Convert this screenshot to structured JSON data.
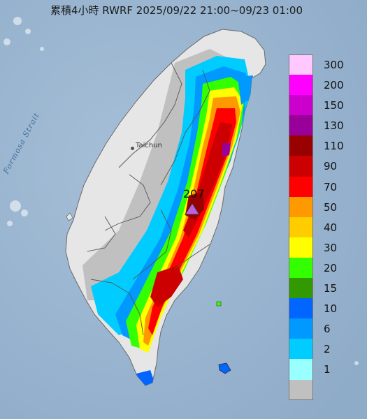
{
  "title": "累積4小時 RWRF 2025/09/22 21:00~09/23 01:00",
  "labels": {
    "strait": "Formosa Strait",
    "city": "Taichun"
  },
  "peak": {
    "value": "207",
    "marker_color": "#c060e0"
  },
  "legend": {
    "units_note": "",
    "items": [
      {
        "label": "300",
        "color": "#ffc8ff"
      },
      {
        "label": "200",
        "color": "#ff00ff"
      },
      {
        "label": "150",
        "color": "#cc00cc"
      },
      {
        "label": "130",
        "color": "#990099"
      },
      {
        "label": "110",
        "color": "#990000"
      },
      {
        "label": "90",
        "color": "#cc0000"
      },
      {
        "label": "70",
        "color": "#ff0000"
      },
      {
        "label": "50",
        "color": "#ff9900"
      },
      {
        "label": "40",
        "color": "#ffcc00"
      },
      {
        "label": "30",
        "color": "#ffff00"
      },
      {
        "label": "20",
        "color": "#33ff00"
      },
      {
        "label": "15",
        "color": "#339900"
      },
      {
        "label": "10",
        "color": "#0066ff"
      },
      {
        "label": "6",
        "color": "#0099ff"
      },
      {
        "label": "2",
        "color": "#00ccff"
      },
      {
        "label": "1",
        "color": "#99ffff"
      },
      {
        "label": "",
        "color": "#c0c0c0"
      }
    ]
  },
  "colors": {
    "sea": "#9fb9d3",
    "land": "#e4e4e4",
    "no_rain": "#c0c0c0"
  }
}
